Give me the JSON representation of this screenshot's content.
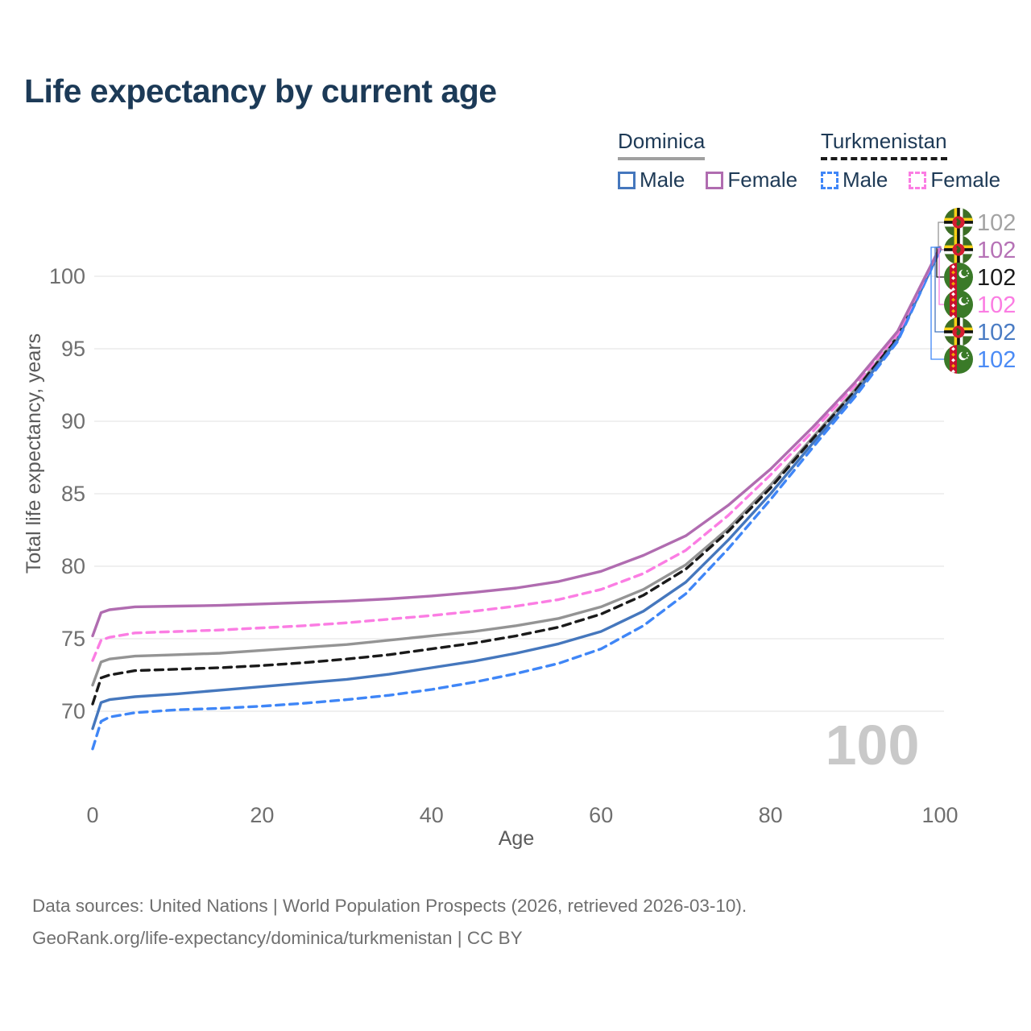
{
  "title": "Life expectancy by current age",
  "legend": {
    "groups": [
      {
        "country": "Dominica",
        "line_style": "solid",
        "underline_color": "#a0a0a0",
        "items": [
          {
            "label": "Male",
            "color": "#4577bd",
            "dashed": false
          },
          {
            "label": "Female",
            "color": "#b06cb0",
            "dashed": false
          }
        ]
      },
      {
        "country": "Turkmenistan",
        "line_style": "dashed",
        "underline_color": "#1a1a1a",
        "items": [
          {
            "label": "Male",
            "color": "#3f86f7",
            "dashed": true
          },
          {
            "label": "Female",
            "color": "#fb7de3",
            "dashed": true
          }
        ]
      }
    ]
  },
  "chart_data": {
    "type": "line",
    "title": "Life expectancy by current age",
    "xlabel": "Age",
    "ylabel": "Total life expectancy, years",
    "xlim": [
      0,
      100
    ],
    "ylim": [
      66,
      103
    ],
    "xticks": [
      0,
      20,
      40,
      60,
      80,
      100
    ],
    "yticks": [
      70,
      75,
      80,
      85,
      90,
      95,
      100
    ],
    "grid": "horizontal-only",
    "gridline_color": "#e7e7e7",
    "watermark": "100",
    "watermark_color": "#c9c9c9",
    "x": [
      0,
      1,
      2,
      5,
      10,
      15,
      20,
      25,
      30,
      35,
      40,
      45,
      50,
      55,
      60,
      65,
      70,
      75,
      80,
      85,
      90,
      95,
      100
    ],
    "series": [
      {
        "name": "Dominica (both sexes)",
        "country": "Dominica",
        "flag": "dominica",
        "color": "#949494",
        "dash": "solid",
        "end_label": "102",
        "end_label_color": "#a3a3a3",
        "values": [
          71.8,
          73.4,
          73.6,
          73.8,
          73.9,
          74.0,
          74.2,
          74.4,
          74.6,
          74.9,
          75.2,
          75.5,
          75.9,
          76.4,
          77.2,
          78.4,
          80.1,
          82.6,
          85.6,
          88.9,
          92.2,
          95.9,
          101.9
        ]
      },
      {
        "name": "Dominica Female",
        "country": "Dominica",
        "flag": "dominica",
        "color": "#b06cb0",
        "dash": "solid",
        "end_label": "102",
        "end_label_color": "#b672b6",
        "values": [
          75.2,
          76.8,
          77.0,
          77.2,
          77.25,
          77.3,
          77.4,
          77.5,
          77.6,
          77.75,
          77.95,
          78.2,
          78.5,
          78.95,
          79.65,
          80.75,
          82.1,
          84.2,
          86.7,
          89.6,
          92.7,
          96.2,
          102.0
        ]
      },
      {
        "name": "Turkmenistan (both sexes)",
        "country": "Turkmenistan",
        "flag": "turkmenistan",
        "color": "#1a1a1a",
        "dash": "dashed",
        "end_label": "102",
        "end_label_color": "#1a1a1a",
        "values": [
          70.5,
          72.3,
          72.5,
          72.8,
          72.9,
          73.0,
          73.15,
          73.35,
          73.6,
          73.9,
          74.3,
          74.7,
          75.2,
          75.8,
          76.7,
          78.0,
          79.8,
          82.4,
          85.4,
          88.8,
          92.1,
          95.8,
          101.9
        ]
      },
      {
        "name": "Turkmenistan Female",
        "country": "Turkmenistan",
        "flag": "turkmenistan",
        "color": "#fb7de3",
        "dash": "dashed",
        "end_label": "102",
        "end_label_color": "#fb7de3",
        "values": [
          73.5,
          74.9,
          75.1,
          75.4,
          75.5,
          75.6,
          75.75,
          75.9,
          76.1,
          76.35,
          76.6,
          76.9,
          77.25,
          77.7,
          78.4,
          79.5,
          81.1,
          83.5,
          86.3,
          89.3,
          92.5,
          96.0,
          102.0
        ]
      },
      {
        "name": "Dominica Male",
        "country": "Dominica",
        "flag": "dominica",
        "color": "#4577bd",
        "dash": "solid",
        "end_label": "102",
        "end_label_color": "#4a7cc4",
        "values": [
          68.8,
          70.6,
          70.8,
          71.0,
          71.2,
          71.45,
          71.7,
          71.95,
          72.2,
          72.55,
          73.0,
          73.45,
          74.0,
          74.65,
          75.5,
          76.9,
          78.9,
          81.8,
          85.0,
          88.5,
          91.9,
          95.6,
          101.8
        ]
      },
      {
        "name": "Turkmenistan Male",
        "country": "Turkmenistan",
        "flag": "turkmenistan",
        "color": "#3f86f7",
        "dash": "dashed",
        "end_label": "102",
        "end_label_color": "#4b8bf5",
        "values": [
          67.4,
          69.3,
          69.6,
          69.9,
          70.1,
          70.2,
          70.35,
          70.55,
          70.8,
          71.1,
          71.5,
          72.0,
          72.6,
          73.3,
          74.3,
          75.9,
          78.1,
          81.2,
          84.6,
          88.2,
          91.7,
          95.5,
          101.8
        ]
      }
    ]
  },
  "footer": {
    "line1": "Data sources: United Nations | World Population Prospects (2026, retrieved 2026-03-10).",
    "line2": "GeoRank.org/life-expectancy/dominica/turkmenistan | CC BY"
  }
}
